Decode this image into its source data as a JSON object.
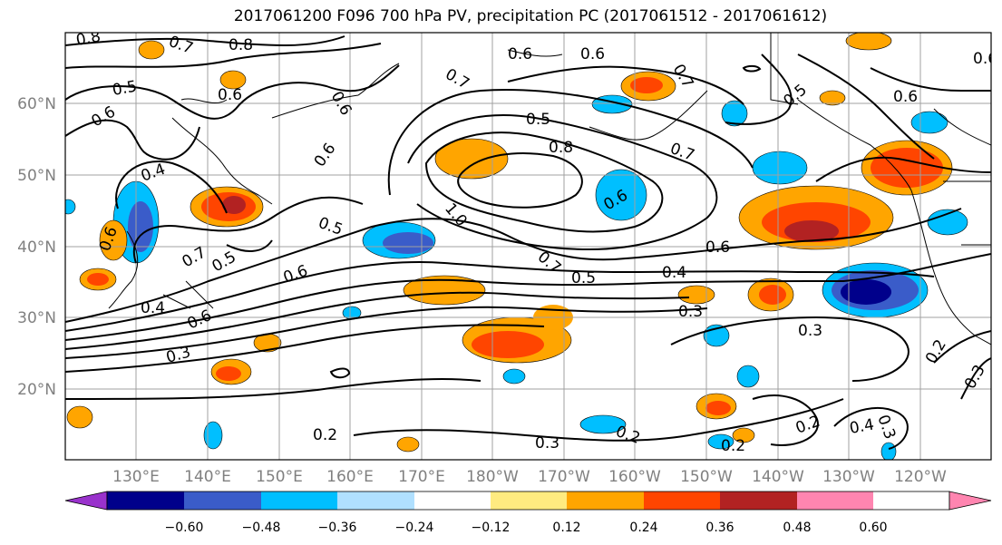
{
  "title": "2017061200 F096 700 hPa PV, precipitation PC (2017061512 - 2017061612)",
  "lat_labels": [
    "60°N",
    "50°N",
    "40°N",
    "30°N",
    "20°N"
  ],
  "lon_labels": [
    "130°E",
    "140°E",
    "150°E",
    "160°E",
    "170°E",
    "180°W",
    "170°W",
    "160°W",
    "150°W",
    "140°W",
    "130°W",
    "120°W"
  ],
  "colorbar": {
    "colors": [
      "#9932cc",
      "#00008b",
      "#3a5cc9",
      "#00bfff",
      "#b0e0ff",
      "#ffffff",
      "#ffeb80",
      "#ffa500",
      "#ff4500",
      "#b22222",
      "#ff85b0"
    ],
    "tick_labels": [
      "−0.60",
      "−0.48",
      "−0.36",
      "−0.24",
      "−0.12",
      "0.12",
      "0.24",
      "0.36",
      "0.48",
      "0.60"
    ]
  },
  "contour_labels": [
    "0.8",
    "0.7",
    "0.8",
    "0.6",
    "0.7",
    "0.6",
    "0.5",
    "0.6",
    "0.6",
    "0.5",
    "0.4",
    "0.6",
    "0.8",
    "0.7",
    "0.5",
    "0.6",
    "0.6",
    "0.7",
    "1.0",
    "0.6",
    "0.5",
    "0.7",
    "0.6",
    "0.5",
    "0.5",
    "0.6",
    "0.4",
    "0.6",
    "0.3",
    "0.3",
    "0.4",
    "0.6",
    "0.3",
    "0.2",
    "0.3",
    "0.2",
    "0.2",
    "0.2",
    "0.4",
    "0.3",
    "0.2",
    "0.3",
    "0.6",
    "0.7"
  ]
}
